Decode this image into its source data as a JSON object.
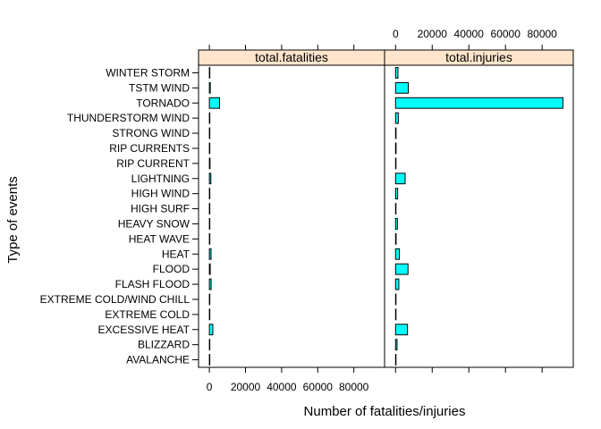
{
  "chart_data": {
    "type": "bar",
    "orientation": "horizontal",
    "ylabel": "Type of events",
    "xlabel": "Number of fatalities/injuries",
    "xlim": [
      -6000,
      97000
    ],
    "xticks": [
      0,
      20000,
      40000,
      60000,
      80000
    ],
    "tick_labels": [
      "0",
      "20000",
      "40000",
      "60000",
      "80000"
    ],
    "categories": [
      "AVALANCHE",
      "BLIZZARD",
      "EXCESSIVE HEAT",
      "EXTREME COLD",
      "EXTREME COLD/WIND CHILL",
      "FLASH FLOOD",
      "FLOOD",
      "HEAT",
      "HEAT WAVE",
      "HEAVY SNOW",
      "HIGH SURF",
      "HIGH WIND",
      "LIGHTNING",
      "RIP CURRENT",
      "RIP CURRENTS",
      "STRONG WIND",
      "THUNDERSTORM WIND",
      "TORNADO",
      "TSTM WIND",
      "WINTER STORM"
    ],
    "series": [
      {
        "name": "total.fatalities",
        "values": [
          224,
          101,
          1903,
          160,
          125,
          978,
          470,
          937,
          172,
          127,
          101,
          103,
          816,
          368,
          204,
          103,
          133,
          5633,
          504,
          206
        ]
      },
      {
        "name": "total.injuries",
        "values": [
          170,
          805,
          6525,
          231,
          24,
          1777,
          6789,
          2100,
          309,
          1021,
          152,
          1137,
          5230,
          232,
          297,
          280,
          1488,
          91346,
          6957,
          1321
        ]
      }
    ]
  },
  "colors": {
    "bar_fill": "#00FFFF",
    "bar_stroke": "#000000",
    "strip_bg": "#FFE5CC",
    "frame": "#000000"
  }
}
